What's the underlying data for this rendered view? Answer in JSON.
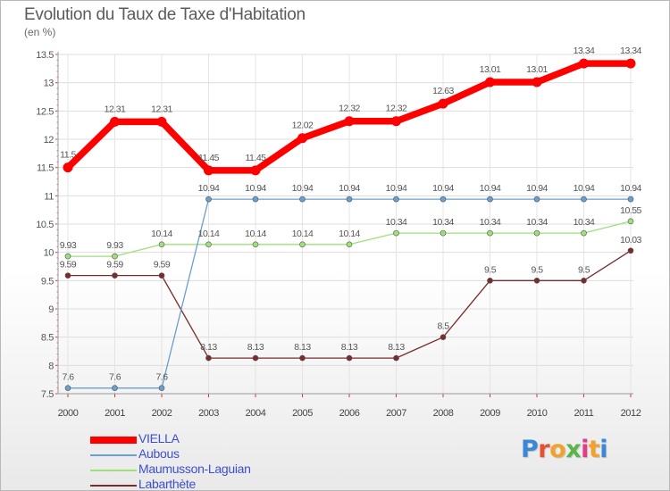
{
  "chart_data": {
    "type": "line",
    "title": "Evolution du Taux de Taxe d'Habitation",
    "subtitle": "(en %)",
    "x": [
      "2000",
      "2001",
      "2002",
      "2003",
      "2004",
      "2005",
      "2006",
      "2007",
      "2008",
      "2009",
      "2010",
      "2011",
      "2012"
    ],
    "ylim": [
      7.5,
      13.5
    ],
    "yticks": [
      "7.5",
      "8",
      "8.5",
      "9",
      "9.5",
      "10",
      "10.5",
      "11",
      "11.5",
      "12",
      "12.5",
      "13",
      "13.5"
    ],
    "grid": "horizontal",
    "legend_position": "bottom-left",
    "series": [
      {
        "name": "VIELLA",
        "color": "#ff0000",
        "values": [
          11.5,
          12.31,
          12.31,
          11.45,
          11.45,
          12.02,
          12.32,
          12.32,
          12.63,
          13.01,
          13.01,
          13.34,
          13.34
        ],
        "labels": [
          "11.5",
          "12.31",
          "12.31",
          "11.45",
          "11.45",
          "12.02",
          "12.32",
          "12.32",
          "12.63",
          "13.01",
          "13.01",
          "13.34",
          "13.34"
        ]
      },
      {
        "name": "Aubous",
        "color": "#6a9fcf",
        "values": [
          7.6,
          7.6,
          7.6,
          10.94,
          10.94,
          10.94,
          10.94,
          10.94,
          10.94,
          10.94,
          10.94,
          10.94,
          10.94
        ],
        "labels": [
          "7.6",
          "7.6",
          "7.6",
          "10.94",
          "10.94",
          "10.94",
          "10.94",
          "10.94",
          "10.94",
          "10.94",
          "10.94",
          "10.94",
          "10.94"
        ]
      },
      {
        "name": "Maumusson-Laguian",
        "color": "#9ee07a",
        "values": [
          9.93,
          9.93,
          10.14,
          10.14,
          10.14,
          10.14,
          10.14,
          10.34,
          10.34,
          10.34,
          10.34,
          10.34,
          10.55
        ],
        "labels": [
          "9.93",
          "9.93",
          "10.14",
          "10.14",
          "10.14",
          "10.14",
          "10.14",
          "10.34",
          "10.34",
          "10.34",
          "10.34",
          "10.34",
          "10.55"
        ]
      },
      {
        "name": "Labarthète",
        "color": "#7a2c2c",
        "values": [
          9.59,
          9.59,
          9.59,
          8.13,
          8.13,
          8.13,
          8.13,
          8.13,
          8.5,
          9.5,
          9.5,
          9.5,
          10.03
        ],
        "labels": [
          "9.59",
          "9.59",
          "9.59",
          "8.13",
          "8.13",
          "8.13",
          "8.13",
          "8.13",
          "8.5",
          "9.5",
          "9.5",
          "9.5",
          "10.03"
        ]
      }
    ]
  },
  "logo": {
    "letters": [
      "P",
      "r",
      "o",
      "x",
      "i",
      "t",
      "i"
    ],
    "colors": [
      "#3a87d8",
      "#e8502f",
      "#f2a22c",
      "#59b548",
      "#e23c8a",
      "#f2a22c",
      "#3a87d8"
    ]
  }
}
